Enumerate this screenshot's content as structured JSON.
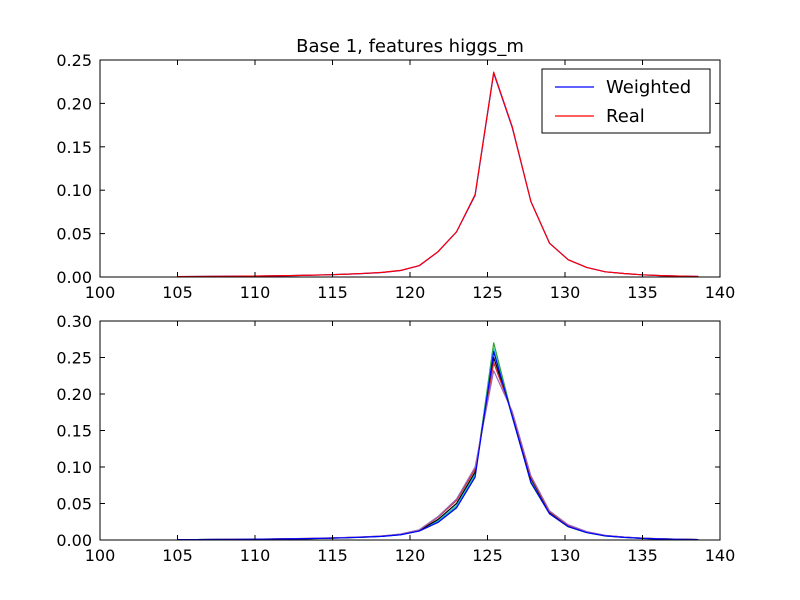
{
  "chart_data": [
    {
      "type": "line",
      "title": "Base 1, features higgs_m",
      "xlabel": "",
      "ylabel": "",
      "xlim": [
        100,
        140
      ],
      "ylim": [
        0,
        0.25
      ],
      "xticks": [
        "100",
        "105",
        "110",
        "115",
        "120",
        "125",
        "130",
        "135",
        "140"
      ],
      "yticks": [
        "0.00",
        "0.05",
        "0.10",
        "0.15",
        "0.20",
        "0.25"
      ],
      "grid": false,
      "legend_placement": "top-right",
      "x": [
        105,
        106.2,
        107.4,
        108.6,
        109.8,
        111,
        112.2,
        113.4,
        114.6,
        115.8,
        117,
        118.2,
        119.4,
        120.6,
        121.8,
        123,
        124.2,
        125.4,
        126.6,
        127.8,
        129,
        130.2,
        131.4,
        132.6,
        133.8,
        135,
        136.2,
        137.4,
        138.6
      ],
      "series": [
        {
          "name": "Weighted",
          "color": "#0000ff",
          "values": [
            0.0005,
            0.0006,
            0.0007,
            0.0009,
            0.001,
            0.0013,
            0.0016,
            0.002,
            0.0025,
            0.0032,
            0.004,
            0.0052,
            0.0075,
            0.013,
            0.029,
            0.052,
            0.094,
            0.235,
            0.172,
            0.087,
            0.039,
            0.02,
            0.011,
            0.006,
            0.004,
            0.0025,
            0.0016,
            0.001,
            0.0006
          ]
        },
        {
          "name": "Real",
          "color": "#ff0000",
          "values": [
            0.0005,
            0.0006,
            0.0007,
            0.0009,
            0.001,
            0.0013,
            0.0016,
            0.002,
            0.0025,
            0.0032,
            0.0041,
            0.0053,
            0.0076,
            0.0132,
            0.029,
            0.052,
            0.095,
            0.236,
            0.173,
            0.087,
            0.039,
            0.02,
            0.011,
            0.006,
            0.004,
            0.0025,
            0.0016,
            0.001,
            0.0006
          ]
        }
      ]
    },
    {
      "type": "line",
      "title": "",
      "xlabel": "",
      "ylabel": "",
      "xlim": [
        100,
        140
      ],
      "ylim": [
        0,
        0.3
      ],
      "xticks": [
        "100",
        "105",
        "110",
        "115",
        "120",
        "125",
        "130",
        "135",
        "140"
      ],
      "yticks": [
        "0.00",
        "0.05",
        "0.10",
        "0.15",
        "0.20",
        "0.25",
        "0.30"
      ],
      "grid": false,
      "x": [
        105,
        106.2,
        107.4,
        108.6,
        109.8,
        111,
        112.2,
        113.4,
        114.6,
        115.8,
        117,
        118.2,
        119.4,
        120.6,
        121.8,
        123,
        124.2,
        125.4,
        126.6,
        127.8,
        129,
        130.2,
        131.4,
        132.6,
        133.8,
        135,
        136.2,
        137.4,
        138.6
      ],
      "series": [
        {
          "color": "#2ca02c",
          "values": [
            0.0005,
            0.0006,
            0.0007,
            0.0008,
            0.001,
            0.0012,
            0.0015,
            0.0019,
            0.0024,
            0.003,
            0.0038,
            0.005,
            0.0072,
            0.0125,
            0.025,
            0.045,
            0.088,
            0.27,
            0.17,
            0.078,
            0.036,
            0.018,
            0.01,
            0.0055,
            0.0035,
            0.0022,
            0.0014,
            0.0009,
            0.0005
          ]
        },
        {
          "color": "#17becf",
          "values": [
            0.0005,
            0.0006,
            0.0007,
            0.0009,
            0.001,
            0.0013,
            0.0016,
            0.002,
            0.0025,
            0.0031,
            0.004,
            0.0051,
            0.0073,
            0.0128,
            0.026,
            0.047,
            0.09,
            0.262,
            0.168,
            0.08,
            0.037,
            0.019,
            0.0105,
            0.0058,
            0.0037,
            0.0023,
            0.0015,
            0.0009,
            0.0006
          ]
        },
        {
          "color": "#000000",
          "values": [
            0.0005,
            0.0006,
            0.0007,
            0.0009,
            0.001,
            0.0013,
            0.0016,
            0.002,
            0.0025,
            0.0032,
            0.004,
            0.0052,
            0.0075,
            0.013,
            0.028,
            0.05,
            0.093,
            0.25,
            0.172,
            0.084,
            0.038,
            0.0195,
            0.011,
            0.006,
            0.0039,
            0.0024,
            0.0016,
            0.001,
            0.0006
          ]
        },
        {
          "color": "#d62728",
          "values": [
            0.0005,
            0.0006,
            0.0007,
            0.0009,
            0.0011,
            0.0014,
            0.0017,
            0.0021,
            0.0026,
            0.0033,
            0.0042,
            0.0055,
            0.008,
            0.0138,
            0.031,
            0.054,
            0.097,
            0.243,
            0.174,
            0.086,
            0.039,
            0.02,
            0.0112,
            0.0062,
            0.004,
            0.0025,
            0.0016,
            0.001,
            0.0006
          ]
        },
        {
          "color": "#9467bd",
          "values": [
            0.0005,
            0.0006,
            0.0008,
            0.001,
            0.0011,
            0.0014,
            0.0018,
            0.0022,
            0.0027,
            0.0034,
            0.0043,
            0.0056,
            0.0082,
            0.014,
            0.032,
            0.056,
            0.1,
            0.232,
            0.176,
            0.088,
            0.04,
            0.021,
            0.0115,
            0.0064,
            0.0041,
            0.0026,
            0.0017,
            0.0011,
            0.0006
          ]
        },
        {
          "color": "#0000ff",
          "values": [
            0.0005,
            0.0006,
            0.0007,
            0.0008,
            0.001,
            0.0012,
            0.0015,
            0.0019,
            0.0024,
            0.003,
            0.0039,
            0.005,
            0.0072,
            0.0122,
            0.024,
            0.044,
            0.086,
            0.258,
            0.169,
            0.079,
            0.036,
            0.0185,
            0.0102,
            0.0056,
            0.0036,
            0.0022,
            0.0014,
            0.0009,
            0.0005
          ]
        }
      ]
    }
  ]
}
